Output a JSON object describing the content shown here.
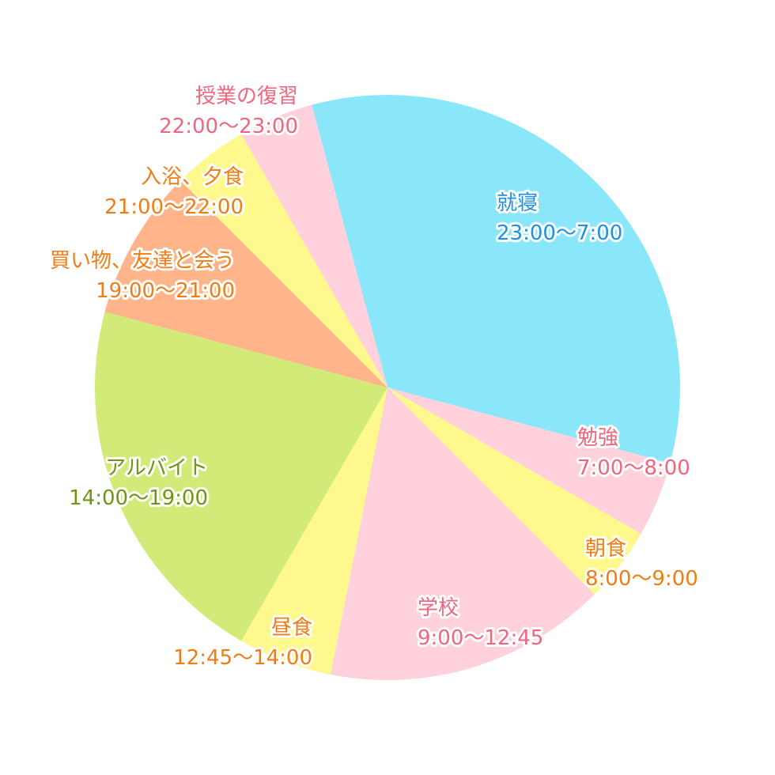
{
  "chart_data": {
    "type": "pie",
    "slices": [
      {
        "name": "就寝",
        "time": "23:00〜7:00",
        "hours": 8,
        "color": "#8ae7fa",
        "text_color": "#1e90e6"
      },
      {
        "name": "勉強",
        "time": "7:00〜8:00",
        "hours": 1,
        "color": "#ffd1dc",
        "text_color": "#f0667e"
      },
      {
        "name": "朝食",
        "time": "8:00〜9:00",
        "hours": 1,
        "color": "#fff88c",
        "text_color": "#f07c14"
      },
      {
        "name": "学校",
        "time": "9:00〜12:45",
        "hours": 3.75,
        "color": "#ffd1dc",
        "text_color": "#f0667e"
      },
      {
        "name": "昼食",
        "time": "12:45〜14:00",
        "hours": 1.25,
        "color": "#fff88c",
        "text_color": "#f07c14"
      },
      {
        "name": "アルバイト",
        "time": "14:00〜19:00",
        "hours": 5,
        "color": "#d1ea78",
        "text_color": "#6e9614"
      },
      {
        "name": "買い物、友達と会う",
        "time": "19:00〜21:00",
        "hours": 2,
        "color": "#ffb48a",
        "text_color": "#f07c14"
      },
      {
        "name": "入浴、夕食",
        "time": "21:00〜22:00",
        "hours": 1,
        "color": "#fff88c",
        "text_color": "#f07c14"
      },
      {
        "name": "授業の復習",
        "time": "22:00〜23:00",
        "hours": 1,
        "color": "#ffd1dc",
        "text_color": "#f0667e"
      }
    ]
  }
}
